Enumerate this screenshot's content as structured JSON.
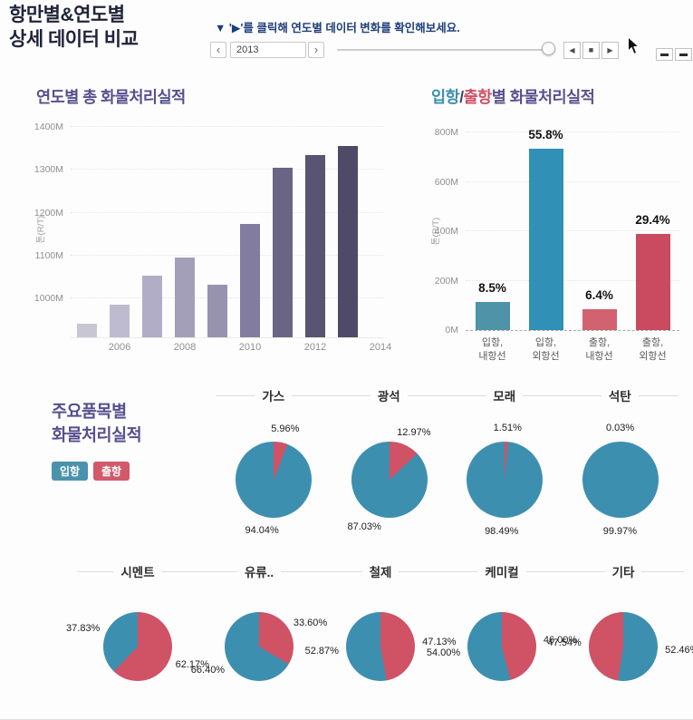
{
  "header": {
    "title_line1": "항만별&연도별",
    "title_line2": "상세 데이터 비교",
    "note": "▼  '▶'를 클릭해 연도별 데이터 변화를 확인해보세요.",
    "year": {
      "value": "2013",
      "prev": "‹",
      "next": "›"
    },
    "playback": {
      "reverse": "◀",
      "stop": "■",
      "forward": "▶"
    }
  },
  "colors": {
    "inbound": "#4b93ad",
    "outbound": "#d05a6a",
    "section_title": "#55508e",
    "note_text": "#1d3e7b"
  },
  "commodity": {
    "title_line1": "주요품목별",
    "title_line2": "화물처리실적",
    "legend": [
      {
        "label": "입항",
        "color": "#4b93ad"
      },
      {
        "label": "출항",
        "color": "#d05a6a"
      }
    ]
  },
  "chart_data": [
    {
      "id": "yearly",
      "type": "bar",
      "title": "연도별 총 화물처리실적",
      "ylabel": "톤(R/T)",
      "categories": [
        "2005",
        "2006",
        "2007",
        "2008",
        "2009",
        "2010",
        "2011",
        "2012",
        "2013"
      ],
      "values": [
        941,
        987,
        1053,
        1096,
        1033,
        1173,
        1305,
        1335,
        1355
      ],
      "unit": "M",
      "ylim": [
        910,
        1400
      ],
      "yticks": [
        1000,
        1100,
        1200,
        1300,
        1400
      ],
      "xticks": [
        "2006",
        "2008",
        "2010",
        "2012",
        "2014"
      ],
      "bar_colors": [
        "#c9c6d4",
        "#bebad0",
        "#b1adc6",
        "#a39fb9",
        "#9792ae",
        "#827da0",
        "#6a6585",
        "#595471",
        "#4f4a68"
      ]
    },
    {
      "id": "inout",
      "type": "bar",
      "title_parts": [
        {
          "text": "입항",
          "color": "#3d8fb0"
        },
        {
          "text": "/",
          "color": "#44415f"
        },
        {
          "text": "출항",
          "color": "#cf4f63"
        },
        {
          "text": "별 화물처리실적",
          "color": "#57528f"
        }
      ],
      "ylabel": "톤(R/T)",
      "categories": [
        [
          "입항,",
          "내항선"
        ],
        [
          "입항,",
          "외항선"
        ],
        [
          "출항,",
          "내항선"
        ],
        [
          "출항,",
          "외항선"
        ]
      ],
      "values": [
        112,
        735,
        85,
        388
      ],
      "value_labels": [
        "8.5%",
        "55.8%",
        "6.4%",
        "29.4%"
      ],
      "unit": "M",
      "ylim": [
        0,
        800
      ],
      "yticks": [
        0,
        200,
        400,
        600,
        800
      ],
      "bar_colors": [
        "#4e93a8",
        "#3090b6",
        "#d2626f",
        "#ca4a5f"
      ]
    },
    {
      "id": "gas",
      "type": "pie",
      "title": "가스",
      "slices": [
        {
          "name": "출항",
          "value": 5.96,
          "label": "5.96%",
          "color": "#cf5265"
        },
        {
          "name": "입항",
          "value": 94.04,
          "label": "94.04%",
          "color": "#3d8fb0"
        }
      ]
    },
    {
      "id": "ore",
      "type": "pie",
      "title": "광석",
      "slices": [
        {
          "name": "출항",
          "value": 12.97,
          "label": "12.97%",
          "color": "#cf5265"
        },
        {
          "name": "입항",
          "value": 87.03,
          "label": "87.03%",
          "color": "#3d8fb0"
        }
      ]
    },
    {
      "id": "sand",
      "type": "pie",
      "title": "모래",
      "slices": [
        {
          "name": "출항",
          "value": 1.51,
          "label": "1.51%",
          "color": "#cf5265"
        },
        {
          "name": "입항",
          "value": 98.49,
          "label": "98.49%",
          "color": "#3d8fb0"
        }
      ]
    },
    {
      "id": "coal",
      "type": "pie",
      "title": "석탄",
      "slices": [
        {
          "name": "출항",
          "value": 0.03,
          "label": "0.03%",
          "color": "#cf5265"
        },
        {
          "name": "입항",
          "value": 99.97,
          "label": "99.97%",
          "color": "#3d8fb0"
        }
      ]
    },
    {
      "id": "cement",
      "type": "pie",
      "title": "시멘트",
      "slices": [
        {
          "name": "출항",
          "value": 62.17,
          "label": "62.17%",
          "color": "#cf5265"
        },
        {
          "name": "입항",
          "value": 37.83,
          "label": "37.83%",
          "color": "#3d8fb0"
        }
      ]
    },
    {
      "id": "oil",
      "type": "pie",
      "title": "유류..",
      "slices": [
        {
          "name": "출항",
          "value": 33.6,
          "label": "33.60%",
          "color": "#cf5265"
        },
        {
          "name": "입항",
          "value": 66.4,
          "label": "66.40%",
          "color": "#3d8fb0"
        }
      ]
    },
    {
      "id": "steel",
      "type": "pie",
      "title": "철제",
      "slices": [
        {
          "name": "출항",
          "value": 47.13,
          "label": "47.13%",
          "color": "#cf5265"
        },
        {
          "name": "입항",
          "value": 52.87,
          "label": "52.87%",
          "color": "#3d8fb0"
        }
      ]
    },
    {
      "id": "chemical",
      "type": "pie",
      "title": "케미컬",
      "slices": [
        {
          "name": "출항",
          "value": 46.0,
          "label": "46.00%",
          "color": "#cf5265"
        },
        {
          "name": "입항",
          "value": 54.0,
          "label": "54.00%",
          "color": "#3d8fb0"
        }
      ]
    },
    {
      "id": "etc",
      "type": "pie",
      "title": "기타",
      "slices": [
        {
          "name": "입항",
          "value": 52.46,
          "label": "52.46%",
          "color": "#3d8fb0"
        },
        {
          "name": "출항",
          "value": 47.54,
          "label": "47.54%",
          "color": "#cf5265"
        }
      ]
    }
  ]
}
